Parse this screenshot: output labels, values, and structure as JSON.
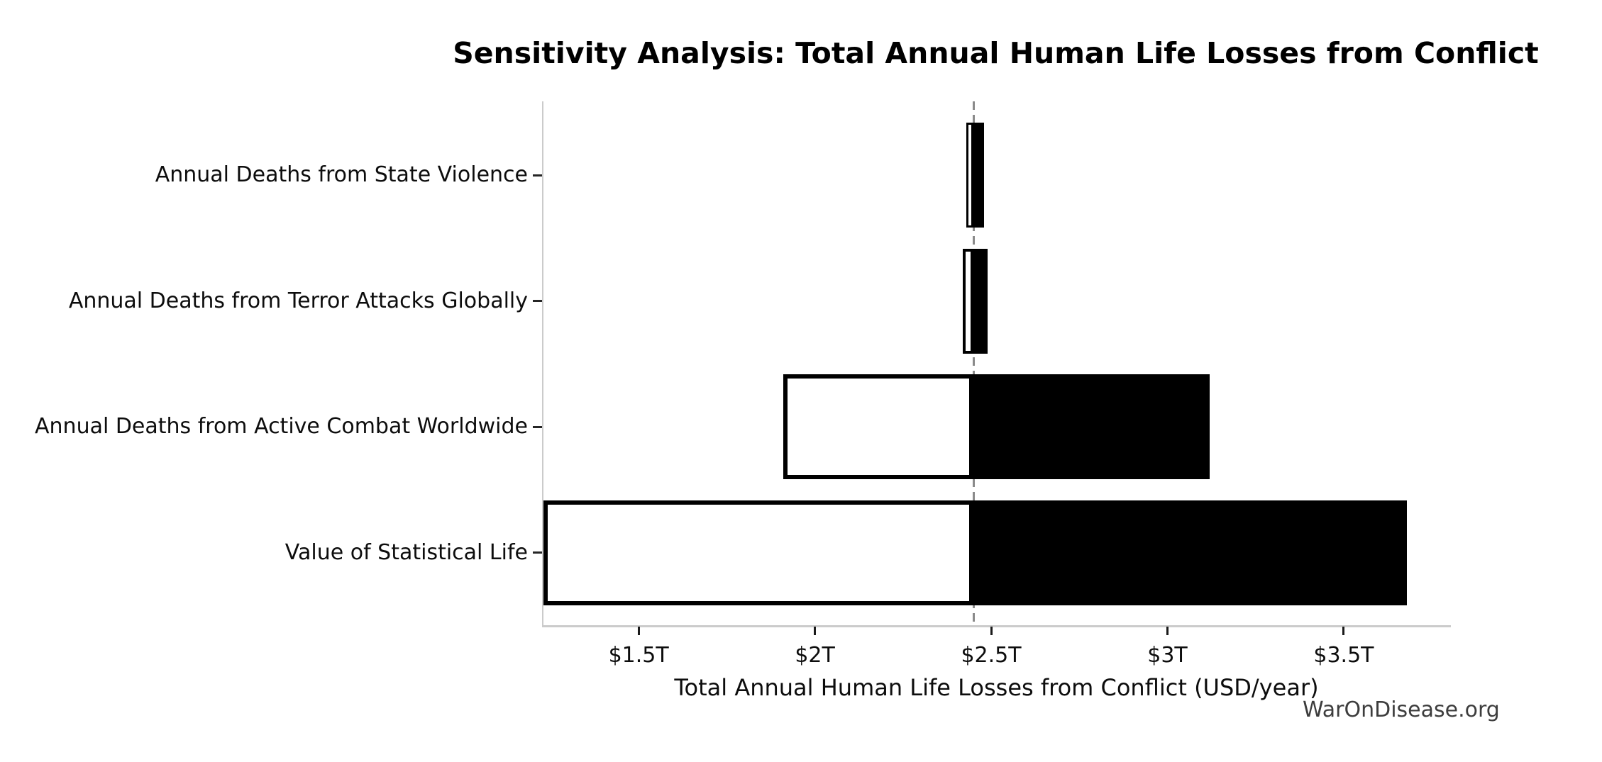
{
  "watermark": "WarOnDisease.org",
  "chart_data": {
    "type": "bar",
    "variant": "tornado-sensitivity-horizontal",
    "title": "Sensitivity Analysis: Total Annual Human Life Losses from Conflict",
    "xlabel": "Total Annual Human Life Losses from Conflict (USD/year)",
    "ylabel": "",
    "units": "trillion USD per year",
    "baseline": 2.45,
    "xlim": [
      1.23,
      3.8
    ],
    "grid": false,
    "legend": false,
    "colors": {
      "low_side_fill": "#ffffff",
      "high_side_fill": "#000000",
      "bar_edge": "#000000",
      "baseline_dash": "#8a8a8a",
      "axis_spine": "#cbcbcb",
      "tick_mark": "#1a1a1a",
      "watermark_text": "#3d3d3d"
    },
    "xticks": [
      {
        "value": 1.5,
        "label": "$1.5T"
      },
      {
        "value": 2.0,
        "label": "$2T"
      },
      {
        "value": 2.5,
        "label": "$2.5T"
      },
      {
        "value": 3.0,
        "label": "$3T"
      },
      {
        "value": 3.5,
        "label": "$3.5T"
      }
    ],
    "rows": [
      {
        "label": "Annual Deaths from State Violence",
        "low": 2.43,
        "high": 2.48
      },
      {
        "label": "Annual Deaths from Terror Attacks Globally",
        "low": 2.42,
        "high": 2.49
      },
      {
        "label": "Annual Deaths from Active Combat Worldwide",
        "low": 1.91,
        "high": 3.12
      },
      {
        "label": "Value of Statistical Life",
        "low": 1.23,
        "high": 3.68
      }
    ]
  }
}
